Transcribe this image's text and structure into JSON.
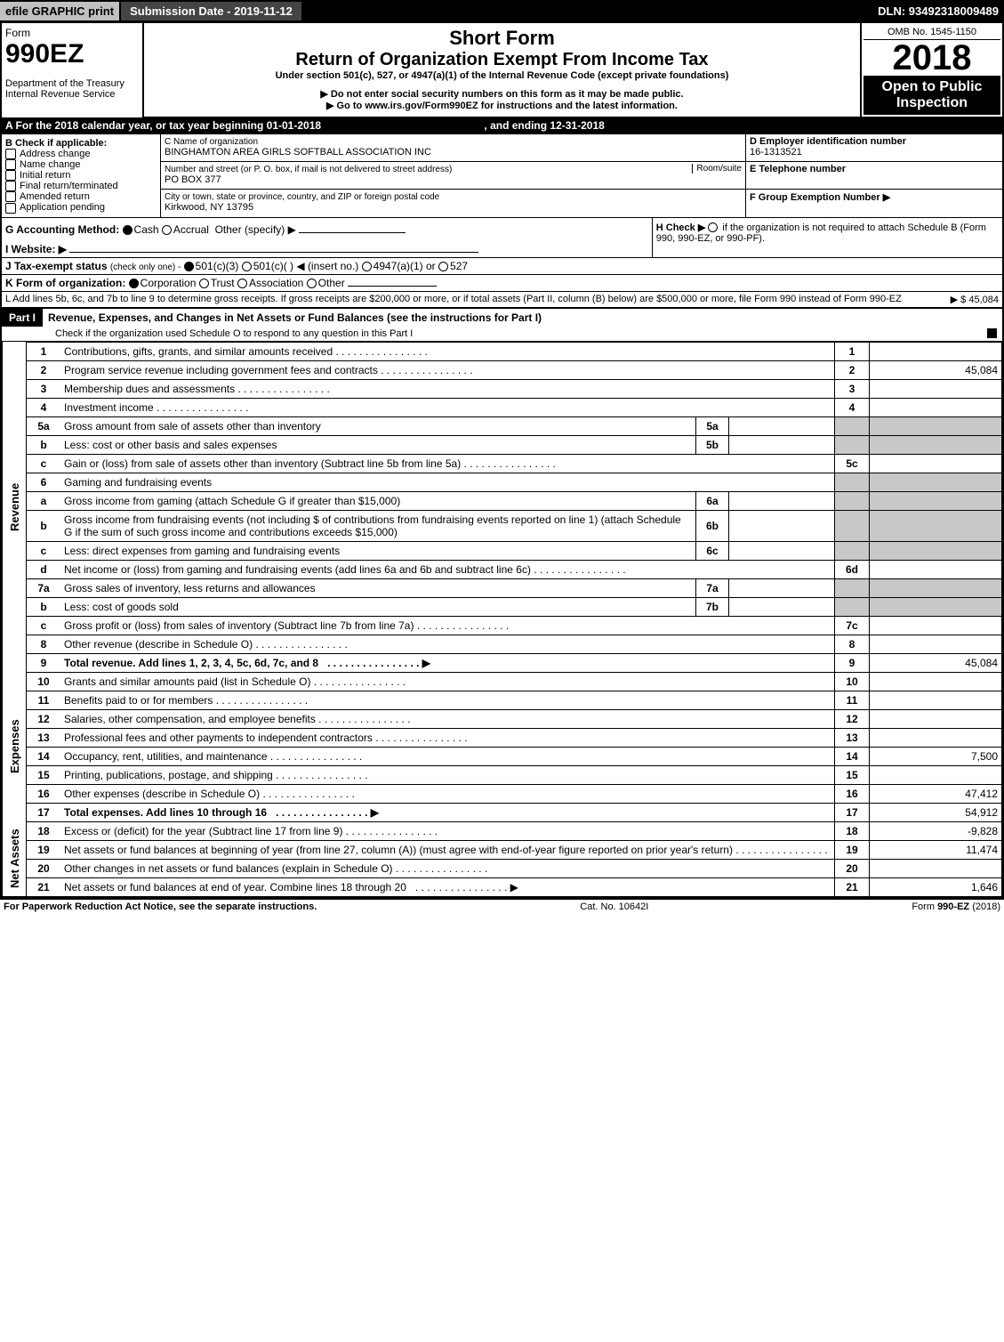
{
  "header": {
    "efile": "efile GRAPHIC print",
    "submission_date_label": "Submission Date - 2019-11-12",
    "dln": "DLN: 93492318009489"
  },
  "title_block": {
    "form_label": "Form",
    "form_no": "990EZ",
    "short_form": "Short Form",
    "return_title": "Return of Organization Exempt From Income Tax",
    "undersection": "Under section 501(c), 527, or 4947(a)(1) of the Internal Revenue Code (except private foundations)",
    "ssn_warning": "▶ Do not enter social security numbers on this form as it may be made public.",
    "instructions": "▶ Go to www.irs.gov/Form990EZ for instructions and the latest information.",
    "dept": "Department of the Treasury",
    "irs": "Internal Revenue Service",
    "omb": "OMB No. 1545-1150",
    "year": "2018",
    "open_public": "Open to Public Inspection"
  },
  "period": {
    "line_a": "A   For the 2018 calendar year, or tax year beginning 01-01-2018",
    "ending": ", and ending 12-31-2018"
  },
  "section_b": {
    "label": "B  Check if applicable:",
    "items": [
      "Address change",
      "Name change",
      "Initial return",
      "Final return/terminated",
      "Amended return",
      "Application pending"
    ]
  },
  "section_c": {
    "label_c": "C Name of organization",
    "org_name": "BINGHAMTON AREA GIRLS SOFTBALL ASSOCIATION INC",
    "addr_label": "Number and street (or P. O. box, if mail is not delivered to street address)",
    "room": "Room/suite",
    "addr": "PO BOX 377",
    "city_label": "City or town, state or province, country, and ZIP or foreign postal code",
    "city": "Kirkwood, NY  13795"
  },
  "section_d": {
    "label": "D Employer identification number",
    "ein": "16-1313521",
    "tel_label": "E Telephone number",
    "group_label": "F Group Exemption Number   ▶"
  },
  "section_g": {
    "label": "G Accounting Method:",
    "cash": "Cash",
    "accrual": "Accrual",
    "other": "Other (specify) ▶"
  },
  "section_h": {
    "label": "H  Check ▶",
    "text": "if the organization is not required to attach Schedule B (Form 990, 990-EZ, or 990-PF)."
  },
  "section_i": {
    "label": "I Website: ▶"
  },
  "section_j": {
    "label": "J Tax-exempt status",
    "sub": "(check only one) -",
    "opt1": "501(c)(3)",
    "opt2": "501(c)(  ) ◀ (insert no.)",
    "opt3": "4947(a)(1) or",
    "opt4": "527"
  },
  "section_k": {
    "label": "K Form of organization:",
    "corp": "Corporation",
    "trust": "Trust",
    "assoc": "Association",
    "other": "Other"
  },
  "section_l": {
    "text": "L Add lines 5b, 6c, and 7b to line 9 to determine gross receipts. If gross receipts are $200,000 or more, or if total assets (Part II, column (B) below) are $500,000 or more, file Form 990 instead of Form 990-EZ",
    "amount": "▶ $ 45,084"
  },
  "part1": {
    "label": "Part I",
    "title": "Revenue, Expenses, and Changes in Net Assets or Fund Balances (see the instructions for Part I)",
    "check_o": "Check if the organization used Schedule O to respond to any question in this Part I"
  },
  "sections": {
    "revenue": "Revenue",
    "expenses": "Expenses",
    "netassets": "Net Assets"
  },
  "lines": [
    {
      "n": "1",
      "desc": "Contributions, gifts, grants, and similar amounts received",
      "box": "1",
      "amt": ""
    },
    {
      "n": "2",
      "desc": "Program service revenue including government fees and contracts",
      "box": "2",
      "amt": "45,084"
    },
    {
      "n": "3",
      "desc": "Membership dues and assessments",
      "box": "3",
      "amt": ""
    },
    {
      "n": "4",
      "desc": "Investment income",
      "box": "4",
      "amt": ""
    },
    {
      "n": "5a",
      "desc": "Gross amount from sale of assets other than inventory",
      "sub": "5a",
      "subamt": ""
    },
    {
      "n": "b",
      "desc": "Less: cost or other basis and sales expenses",
      "sub": "5b",
      "subamt": ""
    },
    {
      "n": "c",
      "desc": "Gain or (loss) from sale of assets other than inventory (Subtract line 5b from line 5a)",
      "box": "5c",
      "amt": ""
    },
    {
      "n": "6",
      "desc": "Gaming and fundraising events"
    },
    {
      "n": "a",
      "desc": "Gross income from gaming (attach Schedule G if greater than $15,000)",
      "sub": "6a",
      "subamt": ""
    },
    {
      "n": "b",
      "desc": "Gross income from fundraising events (not including $                         of contributions from fundraising events reported on line 1) (attach Schedule G if the sum of such gross income and contributions exceeds $15,000)",
      "sub": "6b",
      "subamt": ""
    },
    {
      "n": "c",
      "desc": "Less: direct expenses from gaming and fundraising events",
      "sub": "6c",
      "subamt": ""
    },
    {
      "n": "d",
      "desc": "Net income or (loss) from gaming and fundraising events (add lines 6a and 6b and subtract line 6c)",
      "box": "6d",
      "amt": ""
    },
    {
      "n": "7a",
      "desc": "Gross sales of inventory, less returns and allowances",
      "sub": "7a",
      "subamt": ""
    },
    {
      "n": "b",
      "desc": "Less: cost of goods sold",
      "sub": "7b",
      "subamt": ""
    },
    {
      "n": "c",
      "desc": "Gross profit or (loss) from sales of inventory (Subtract line 7b from line 7a)",
      "box": "7c",
      "amt": ""
    },
    {
      "n": "8",
      "desc": "Other revenue (describe in Schedule O)",
      "box": "8",
      "amt": ""
    },
    {
      "n": "9",
      "desc": "Total revenue. Add lines 1, 2, 3, 4, 5c, 6d, 7c, and 8",
      "box": "9",
      "amt": "45,084",
      "bold": true,
      "arrow": true
    }
  ],
  "exp_lines": [
    {
      "n": "10",
      "desc": "Grants and similar amounts paid (list in Schedule O)",
      "box": "10",
      "amt": ""
    },
    {
      "n": "11",
      "desc": "Benefits paid to or for members",
      "box": "11",
      "amt": ""
    },
    {
      "n": "12",
      "desc": "Salaries, other compensation, and employee benefits",
      "box": "12",
      "amt": ""
    },
    {
      "n": "13",
      "desc": "Professional fees and other payments to independent contractors",
      "box": "13",
      "amt": ""
    },
    {
      "n": "14",
      "desc": "Occupancy, rent, utilities, and maintenance",
      "box": "14",
      "amt": "7,500"
    },
    {
      "n": "15",
      "desc": "Printing, publications, postage, and shipping",
      "box": "15",
      "amt": ""
    },
    {
      "n": "16",
      "desc": "Other expenses (describe in Schedule O)",
      "box": "16",
      "amt": "47,412"
    },
    {
      "n": "17",
      "desc": "Total expenses. Add lines 10 through 16",
      "box": "17",
      "amt": "54,912",
      "bold": true,
      "arrow": true
    }
  ],
  "na_lines": [
    {
      "n": "18",
      "desc": "Excess or (deficit) for the year (Subtract line 17 from line 9)",
      "box": "18",
      "amt": "-9,828"
    },
    {
      "n": "19",
      "desc": "Net assets or fund balances at beginning of year (from line 27, column (A)) (must agree with end-of-year figure reported on prior year's return)",
      "box": "19",
      "amt": "11,474"
    },
    {
      "n": "20",
      "desc": "Other changes in net assets or fund balances (explain in Schedule O)",
      "box": "20",
      "amt": ""
    },
    {
      "n": "21",
      "desc": "Net assets or fund balances at end of year. Combine lines 18 through 20",
      "box": "21",
      "amt": "1,646",
      "arrow": true
    }
  ],
  "footer": {
    "left": "For Paperwork Reduction Act Notice, see the separate instructions.",
    "center": "Cat. No. 10642I",
    "right": "Form 990-EZ (2018)"
  },
  "colors": {
    "black": "#000000",
    "gray_bg": "#c0c0c0",
    "shade": "#c8c8c8"
  }
}
